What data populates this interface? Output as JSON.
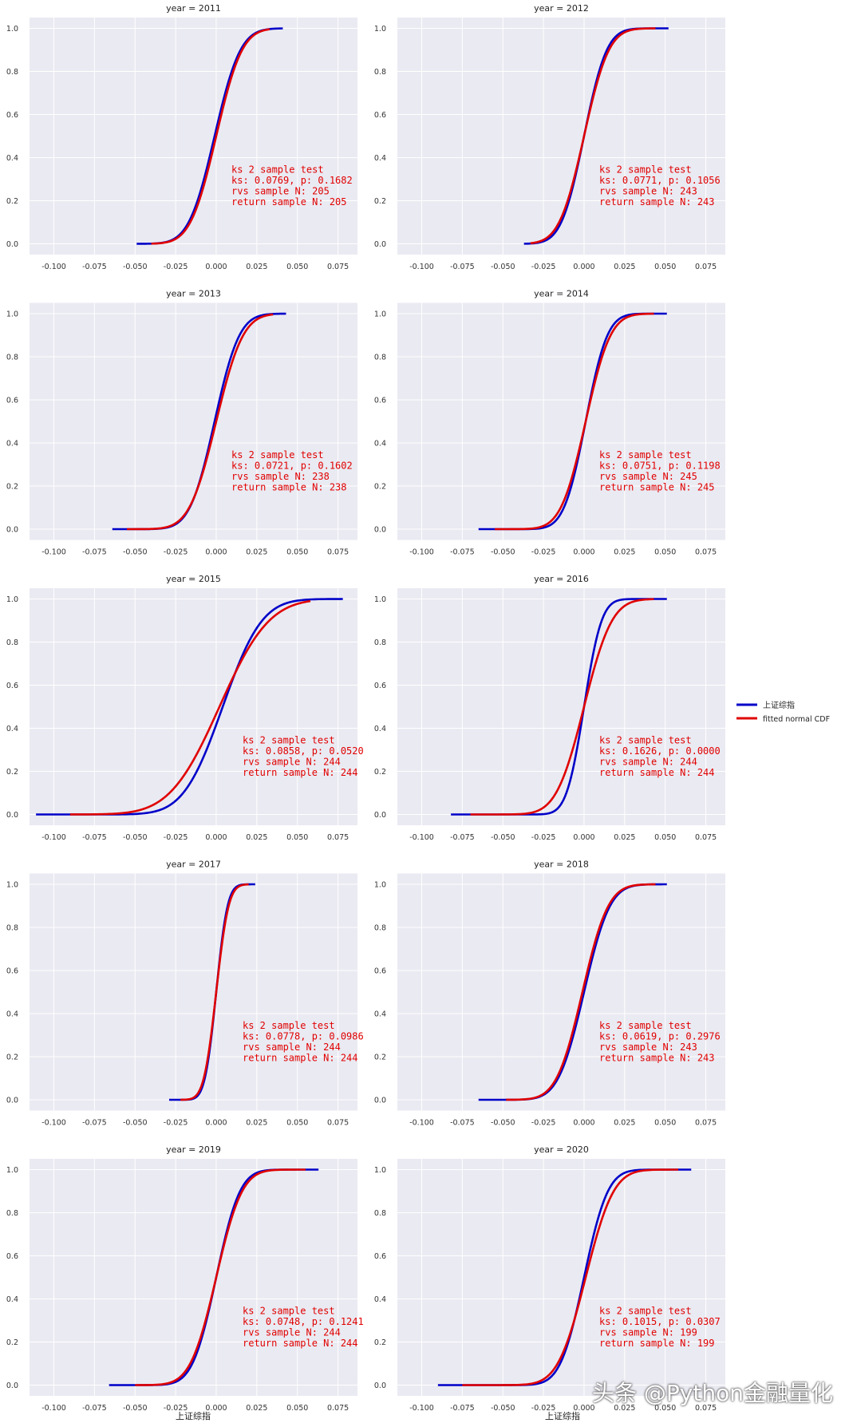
{
  "xticks": [
    -0.1,
    -0.075,
    -0.05,
    -0.025,
    0.0,
    0.025,
    0.05,
    0.075
  ],
  "xtick_labels": [
    "-0.100",
    "-0.075",
    "-0.050",
    "-0.025",
    "0.000",
    "0.025",
    "0.050",
    "0.075"
  ],
  "yticks": [
    0.0,
    0.2,
    0.4,
    0.6,
    0.8,
    1.0
  ],
  "ytick_labels": [
    "0.0",
    "0.2",
    "0.4",
    "0.6",
    "0.8",
    "1.0"
  ],
  "colors": {
    "series1": "#0000c8",
    "series2": "#e00000",
    "plot_bg": "#eaeaf2",
    "grid": "#ffffff",
    "annotation": "#e00000"
  },
  "legend": {
    "series1": "上证综指",
    "series2": "fitted normal CDF"
  },
  "xlabel": "上证综指",
  "watermark": "头条 @Python金融量化",
  "chart_data": [
    {
      "type": "line",
      "title": "year = 2011",
      "xlim": [
        -0.115,
        0.087
      ],
      "ylim": [
        -0.05,
        1.05
      ],
      "series": [
        {
          "name": "上证综指",
          "x_range": [
            -0.049,
            0.041
          ],
          "loc": -0.001,
          "scale": 0.0125
        },
        {
          "name": "fitted normal CDF",
          "x_range": [
            -0.04,
            0.033
          ],
          "loc": 0.0,
          "scale": 0.0125
        }
      ],
      "annotation": [
        "ks 2 sample test",
        "ks: 0.0769, p: 0.1682",
        "rvs sample N: 205",
        "return sample N: 205"
      ]
    },
    {
      "type": "line",
      "title": "year = 2012",
      "xlim": [
        -0.115,
        0.087
      ],
      "ylim": [
        -0.05,
        1.05
      ],
      "series": [
        {
          "name": "上证综指",
          "x_range": [
            -0.037,
            0.052
          ],
          "loc": 0.0,
          "scale": 0.011
        },
        {
          "name": "fitted normal CDF",
          "x_range": [
            -0.033,
            0.044
          ],
          "loc": 0.0,
          "scale": 0.012
        }
      ],
      "annotation": [
        "ks 2 sample test",
        "ks: 0.0771, p: 0.1056",
        "rvs sample N: 243",
        "return sample N: 243"
      ]
    },
    {
      "type": "line",
      "title": "year = 2013",
      "xlim": [
        -0.115,
        0.087
      ],
      "ylim": [
        -0.05,
        1.05
      ],
      "series": [
        {
          "name": "上证综指",
          "x_range": [
            -0.064,
            0.043
          ],
          "loc": -0.001,
          "scale": 0.012
        },
        {
          "name": "fitted normal CDF",
          "x_range": [
            -0.055,
            0.035
          ],
          "loc": 0.0,
          "scale": 0.013
        }
      ],
      "annotation": [
        "ks 2 sample test",
        "ks: 0.0721, p: 0.1602",
        "rvs sample N: 238",
        "return sample N: 238"
      ]
    },
    {
      "type": "line",
      "title": "year = 2014",
      "xlim": [
        -0.115,
        0.087
      ],
      "ylim": [
        -0.05,
        1.05
      ],
      "series": [
        {
          "name": "上证综指",
          "x_range": [
            -0.065,
            0.051
          ],
          "loc": 0.001,
          "scale": 0.0105
        },
        {
          "name": "fitted normal CDF",
          "x_range": [
            -0.055,
            0.043
          ],
          "loc": 0.001,
          "scale": 0.012
        }
      ],
      "annotation": [
        "ks 2 sample test",
        "ks: 0.0751, p: 0.1198",
        "rvs sample N: 245",
        "return sample N: 245"
      ]
    },
    {
      "type": "line",
      "title": "year = 2015",
      "xlim": [
        -0.115,
        0.087
      ],
      "ylim": [
        -0.05,
        1.05
      ],
      "series": [
        {
          "name": "上证综指",
          "x_range": [
            -0.111,
            0.078
          ],
          "loc": 0.004,
          "scale": 0.019
        },
        {
          "name": "fitted normal CDF",
          "x_range": [
            -0.09,
            0.058
          ],
          "loc": 0.002,
          "scale": 0.024
        }
      ],
      "annotation": [
        "ks 2 sample test",
        "ks: 0.0858, p: 0.0520",
        "rvs sample N: 244",
        "return sample N: 244"
      ]
    },
    {
      "type": "line",
      "title": "year = 2016",
      "xlim": [
        -0.115,
        0.087
      ],
      "ylim": [
        -0.05,
        1.05
      ],
      "series": [
        {
          "name": "上证综指",
          "x_range": [
            -0.082,
            0.051
          ],
          "loc": 0.0,
          "scale": 0.0085
        },
        {
          "name": "fitted normal CDF",
          "x_range": [
            -0.07,
            0.043
          ],
          "loc": 0.0,
          "scale": 0.0135
        }
      ],
      "annotation": [
        "ks 2 sample test",
        "ks: 0.1626, p: 0.0000",
        "rvs sample N: 244",
        "return sample N: 244"
      ]
    },
    {
      "type": "line",
      "title": "year = 2017",
      "xlim": [
        -0.115,
        0.087
      ],
      "ylim": [
        -0.05,
        1.05
      ],
      "series": [
        {
          "name": "上证综指",
          "x_range": [
            -0.029,
            0.024
          ],
          "loc": 0.0,
          "scale": 0.0055
        },
        {
          "name": "fitted normal CDF",
          "x_range": [
            -0.022,
            0.02
          ],
          "loc": 0.0,
          "scale": 0.006
        }
      ],
      "annotation": [
        "ks 2 sample test",
        "ks: 0.0778, p: 0.0986",
        "rvs sample N: 244",
        "return sample N: 244"
      ]
    },
    {
      "type": "line",
      "title": "year = 2018",
      "xlim": [
        -0.115,
        0.087
      ],
      "ylim": [
        -0.05,
        1.05
      ],
      "series": [
        {
          "name": "上证综指",
          "x_range": [
            -0.065,
            0.051
          ],
          "loc": 0.0,
          "scale": 0.0125
        },
        {
          "name": "fitted normal CDF",
          "x_range": [
            -0.048,
            0.044
          ],
          "loc": -0.001,
          "scale": 0.0125
        }
      ],
      "annotation": [
        "ks 2 sample test",
        "ks: 0.0619, p: 0.2976",
        "rvs sample N: 243",
        "return sample N: 243"
      ]
    },
    {
      "type": "line",
      "title": "year = 2019",
      "xlim": [
        -0.115,
        0.087
      ],
      "ylim": [
        -0.05,
        1.05
      ],
      "series": [
        {
          "name": "上证综指",
          "x_range": [
            -0.066,
            0.063
          ],
          "loc": 0.0,
          "scale": 0.0115
        },
        {
          "name": "fitted normal CDF",
          "x_range": [
            -0.05,
            0.055
          ],
          "loc": 0.0,
          "scale": 0.0125
        }
      ],
      "annotation": [
        "ks 2 sample test",
        "ks: 0.0748, p: 0.1241",
        "rvs sample N: 244",
        "return sample N: 244"
      ]
    },
    {
      "type": "line",
      "title": "year = 2020",
      "xlim": [
        -0.115,
        0.087
      ],
      "ylim": [
        -0.05,
        1.05
      ],
      "series": [
        {
          "name": "上证综指",
          "x_range": [
            -0.09,
            0.066
          ],
          "loc": 0.0,
          "scale": 0.0115
        },
        {
          "name": "fitted normal CDF",
          "x_range": [
            -0.075,
            0.058
          ],
          "loc": 0.001,
          "scale": 0.0135
        }
      ],
      "annotation": [
        "ks 2 sample test",
        "ks: 0.1015, p: 0.0307",
        "rvs sample N: 199",
        "return sample N: 199"
      ]
    }
  ]
}
